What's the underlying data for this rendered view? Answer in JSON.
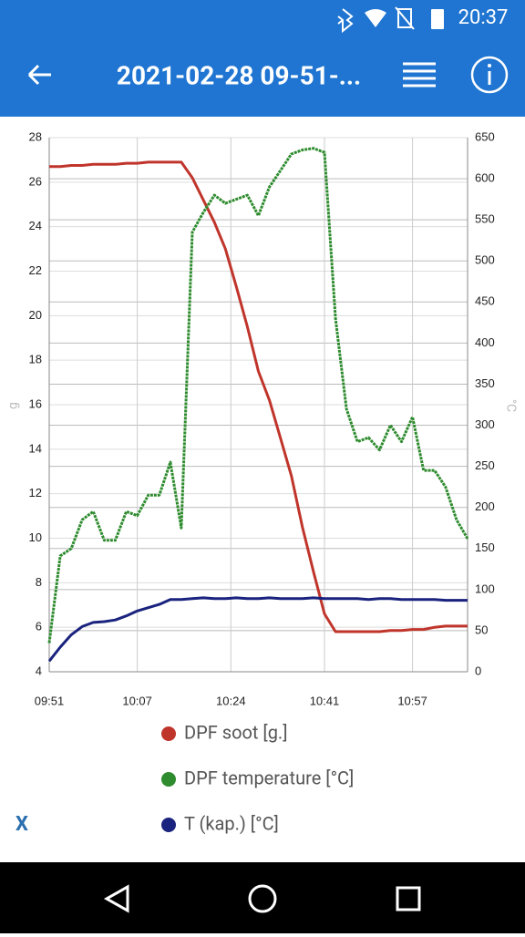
{
  "status_bar": {
    "time": "20:37"
  },
  "toolbar": {
    "title": "2021-02-28 09-51-..."
  },
  "x_button": "X",
  "chart_data": {
    "type": "line",
    "ylabel": "g",
    "y2label": "°C",
    "x": [
      "09:51",
      "09:53",
      "09:55",
      "09:57",
      "09:59",
      "10:01",
      "10:03",
      "10:05",
      "10:07",
      "10:09",
      "10:11",
      "10:13",
      "10:15",
      "10:17",
      "10:19",
      "10:21",
      "10:23",
      "10:25",
      "10:27",
      "10:29",
      "10:31",
      "10:33",
      "10:35",
      "10:37",
      "10:39",
      "10:41",
      "10:43",
      "10:45",
      "10:47",
      "10:49",
      "10:51",
      "10:53",
      "10:55",
      "10:57",
      "10:59",
      "11:01",
      "11:03",
      "11:05",
      "11:07"
    ],
    "xlim": [
      "09:51",
      "11:07"
    ],
    "xticks": [
      "09:51",
      "10:07",
      "10:24",
      "10:41",
      "10:57"
    ],
    "ylim": [
      4,
      28
    ],
    "yticks": [
      4,
      6,
      8,
      10,
      12,
      14,
      16,
      18,
      20,
      22,
      24,
      26,
      28
    ],
    "y2lim": [
      0,
      650
    ],
    "y2ticks": [
      0,
      50,
      100,
      150,
      200,
      250,
      300,
      350,
      400,
      450,
      500,
      550,
      600,
      650
    ],
    "grid": true,
    "series": [
      {
        "name": "DPF soot [g.]",
        "color": "#c0352b",
        "axis": "y",
        "values": [
          26.7,
          26.7,
          26.75,
          26.75,
          26.8,
          26.8,
          26.8,
          26.85,
          26.85,
          26.9,
          26.9,
          26.9,
          26.9,
          26.2,
          25.2,
          24.2,
          23.0,
          21.3,
          19.5,
          17.5,
          16.2,
          14.5,
          12.8,
          10.5,
          8.5,
          6.6,
          5.8,
          5.8,
          5.8,
          5.8,
          5.8,
          5.85,
          5.85,
          5.9,
          5.9,
          6.0,
          6.05,
          6.05,
          6.05
        ]
      },
      {
        "name": "DPF temperature [°C]",
        "color": "#2e8b2e",
        "axis": "y2",
        "values": [
          35,
          141,
          150,
          185,
          195,
          160,
          160,
          195,
          190,
          215,
          215,
          255,
          175,
          535,
          559,
          580,
          570,
          575,
          580,
          555,
          590,
          610,
          630,
          635,
          637,
          632,
          430,
          320,
          280,
          285,
          270,
          300,
          280,
          310,
          245,
          245,
          225,
          185,
          162
        ]
      },
      {
        "name": "T (kap.) [°C]",
        "color": "#1a237e",
        "axis": "y2",
        "values": [
          13,
          30,
          45,
          55,
          60,
          61,
          63,
          68,
          74,
          78,
          82,
          88,
          88,
          89,
          90,
          89,
          89,
          90,
          89,
          89,
          90,
          89,
          89,
          89,
          90,
          89,
          89,
          89,
          89,
          88,
          89,
          89,
          88,
          88,
          88,
          88,
          87,
          87,
          87
        ]
      }
    ]
  }
}
